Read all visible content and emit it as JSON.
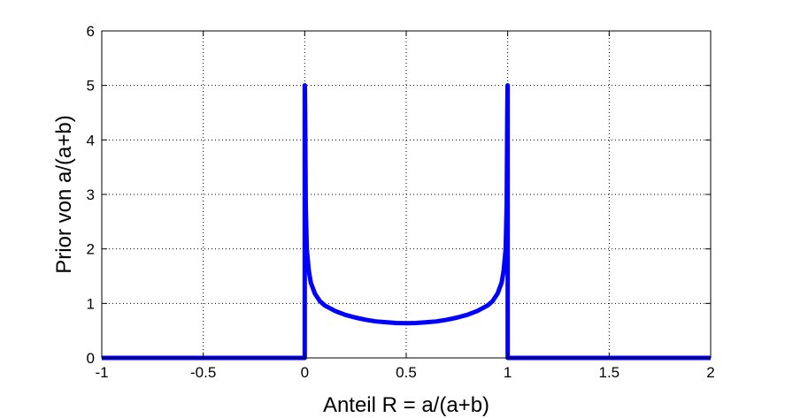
{
  "chart_data": {
    "type": "line",
    "title": "",
    "xlabel": "Anteil R = a/(a+b)",
    "ylabel": "Prior von a/(a+b)",
    "xlim": [
      -1,
      2
    ],
    "ylim": [
      0,
      6
    ],
    "xticks": [
      -1,
      -0.5,
      0,
      0.5,
      1,
      1.5,
      2
    ],
    "yticks": [
      0,
      1,
      2,
      3,
      4,
      5,
      6
    ],
    "xtick_labels": [
      "-1",
      "-0.5",
      "0",
      "0.5",
      "1",
      "1.5",
      "2"
    ],
    "ytick_labels": [
      "0",
      "1",
      "2",
      "3",
      "4",
      "5",
      "6"
    ],
    "grid": true,
    "legend": "none",
    "series": [
      {
        "color": "#0000ff",
        "x": [
          -1,
          -0.5,
          0,
          0,
          0.0005,
          0.002,
          0.005,
          0.01,
          0.02,
          0.03,
          0.05,
          0.075,
          0.1,
          0.15,
          0.2,
          0.25,
          0.3,
          0.35,
          0.4,
          0.45,
          0.5,
          0.55,
          0.6,
          0.65,
          0.7,
          0.75,
          0.8,
          0.85,
          0.9,
          0.925,
          0.95,
          0.97,
          0.98,
          0.99,
          0.995,
          0.998,
          0.9995,
          1,
          1,
          1.5,
          2
        ],
        "y": [
          0,
          0,
          0,
          5.0,
          5.0,
          4.5,
          2.8,
          2.0,
          1.6,
          1.38,
          1.18,
          1.04,
          0.96,
          0.86,
          0.79,
          0.74,
          0.7,
          0.67,
          0.655,
          0.64,
          0.637,
          0.64,
          0.655,
          0.67,
          0.7,
          0.74,
          0.79,
          0.86,
          0.96,
          1.04,
          1.18,
          1.38,
          1.6,
          2.0,
          2.8,
          4.5,
          5.0,
          5.0,
          0,
          0,
          0
        ]
      }
    ]
  }
}
